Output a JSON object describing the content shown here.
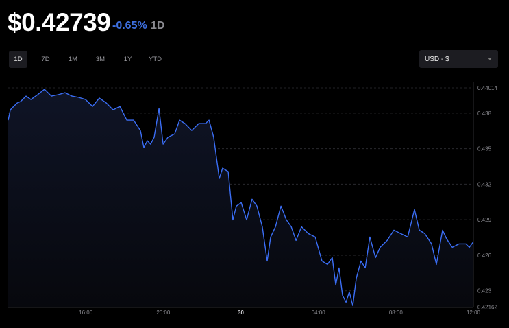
{
  "header": {
    "price": "$0.42739",
    "change": "-0.65%",
    "period": "1D"
  },
  "ranges": [
    "1D",
    "7D",
    "1M",
    "3M",
    "1Y",
    "YTD"
  ],
  "active_range": "1D",
  "currency_select": {
    "value": "USD - $"
  },
  "colors": {
    "line": "#3b6ef5",
    "change": "#3d6fe0"
  },
  "chart_data": {
    "type": "area",
    "title": "",
    "xlabel": "",
    "ylabel": "",
    "x_unit": "hours since 12:00 previous day",
    "xlim": [
      0,
      24
    ],
    "ylim": [
      0.42162,
      0.44014
    ],
    "y_ticks": [
      {
        "v": 0.44014,
        "label": "0.44014"
      },
      {
        "v": 0.438,
        "label": "0.438"
      },
      {
        "v": 0.435,
        "label": "0.435"
      },
      {
        "v": 0.432,
        "label": "0.432"
      },
      {
        "v": 0.429,
        "label": "0.429"
      },
      {
        "v": 0.426,
        "label": "0.426"
      },
      {
        "v": 0.423,
        "label": "0.423"
      },
      {
        "v": 0.42162,
        "label": "0.42162"
      }
    ],
    "x_ticks": [
      {
        "v": 4,
        "label": "16:00"
      },
      {
        "v": 8,
        "label": "20:00"
      },
      {
        "v": 12,
        "label": "30"
      },
      {
        "v": 16,
        "label": "04:00"
      },
      {
        "v": 20,
        "label": "08:00"
      },
      {
        "v": 24,
        "label": "12:00"
      }
    ],
    "grid": true,
    "x": [
      0,
      0.11,
      0.28,
      0.46,
      0.64,
      0.92,
      1.17,
      1.52,
      1.87,
      2.23,
      2.58,
      2.93,
      3.29,
      3.64,
      3.99,
      4.35,
      4.7,
      5.06,
      5.41,
      5.76,
      6.12,
      6.47,
      6.82,
      7.0,
      7.18,
      7.35,
      7.53,
      7.78,
      7.99,
      8.24,
      8.59,
      8.84,
      9.12,
      9.47,
      9.83,
      10.18,
      10.36,
      10.6,
      10.89,
      11.06,
      11.35,
      11.59,
      11.77,
      12.02,
      12.3,
      12.58,
      12.83,
      13.11,
      13.36,
      13.54,
      13.79,
      14.07,
      14.35,
      14.6,
      14.85,
      15.13,
      15.48,
      15.84,
      16.19,
      16.47,
      16.72,
      16.9,
      17.07,
      17.25,
      17.43,
      17.6,
      17.78,
      17.96,
      18.2,
      18.42,
      18.66,
      18.95,
      19.19,
      19.55,
      19.9,
      20.25,
      20.61,
      20.96,
      21.21,
      21.49,
      21.84,
      22.09,
      22.41,
      22.62,
      22.91,
      23.26,
      23.61,
      23.79,
      24
    ],
    "y": [
      0.43741,
      0.43828,
      0.43857,
      0.43886,
      0.43898,
      0.43944,
      0.43915,
      0.43956,
      0.44002,
      0.43944,
      0.43956,
      0.43973,
      0.43944,
      0.43933,
      0.43915,
      0.43857,
      0.43927,
      0.43886,
      0.43828,
      0.43857,
      0.43741,
      0.43741,
      0.43654,
      0.43509,
      0.43567,
      0.43538,
      0.43596,
      0.4384,
      0.43538,
      0.43596,
      0.43625,
      0.43741,
      0.43712,
      0.43654,
      0.43712,
      0.43712,
      0.43741,
      0.43596,
      0.43248,
      0.43335,
      0.43306,
      0.42899,
      0.43015,
      0.43044,
      0.42899,
      0.43073,
      0.43015,
      0.42841,
      0.42551,
      0.42754,
      0.42841,
      0.43015,
      0.42899,
      0.42841,
      0.42725,
      0.42841,
      0.42783,
      0.42754,
      0.42551,
      0.42522,
      0.4258,
      0.42348,
      0.42493,
      0.42261,
      0.42203,
      0.4229,
      0.42174,
      0.42406,
      0.42551,
      0.42493,
      0.42754,
      0.4258,
      0.42667,
      0.42725,
      0.42812,
      0.42783,
      0.42754,
      0.42986,
      0.42812,
      0.42783,
      0.42696,
      0.42522,
      0.42812,
      0.42737,
      0.42667,
      0.42696,
      0.42696,
      0.42667,
      0.42714
    ]
  }
}
